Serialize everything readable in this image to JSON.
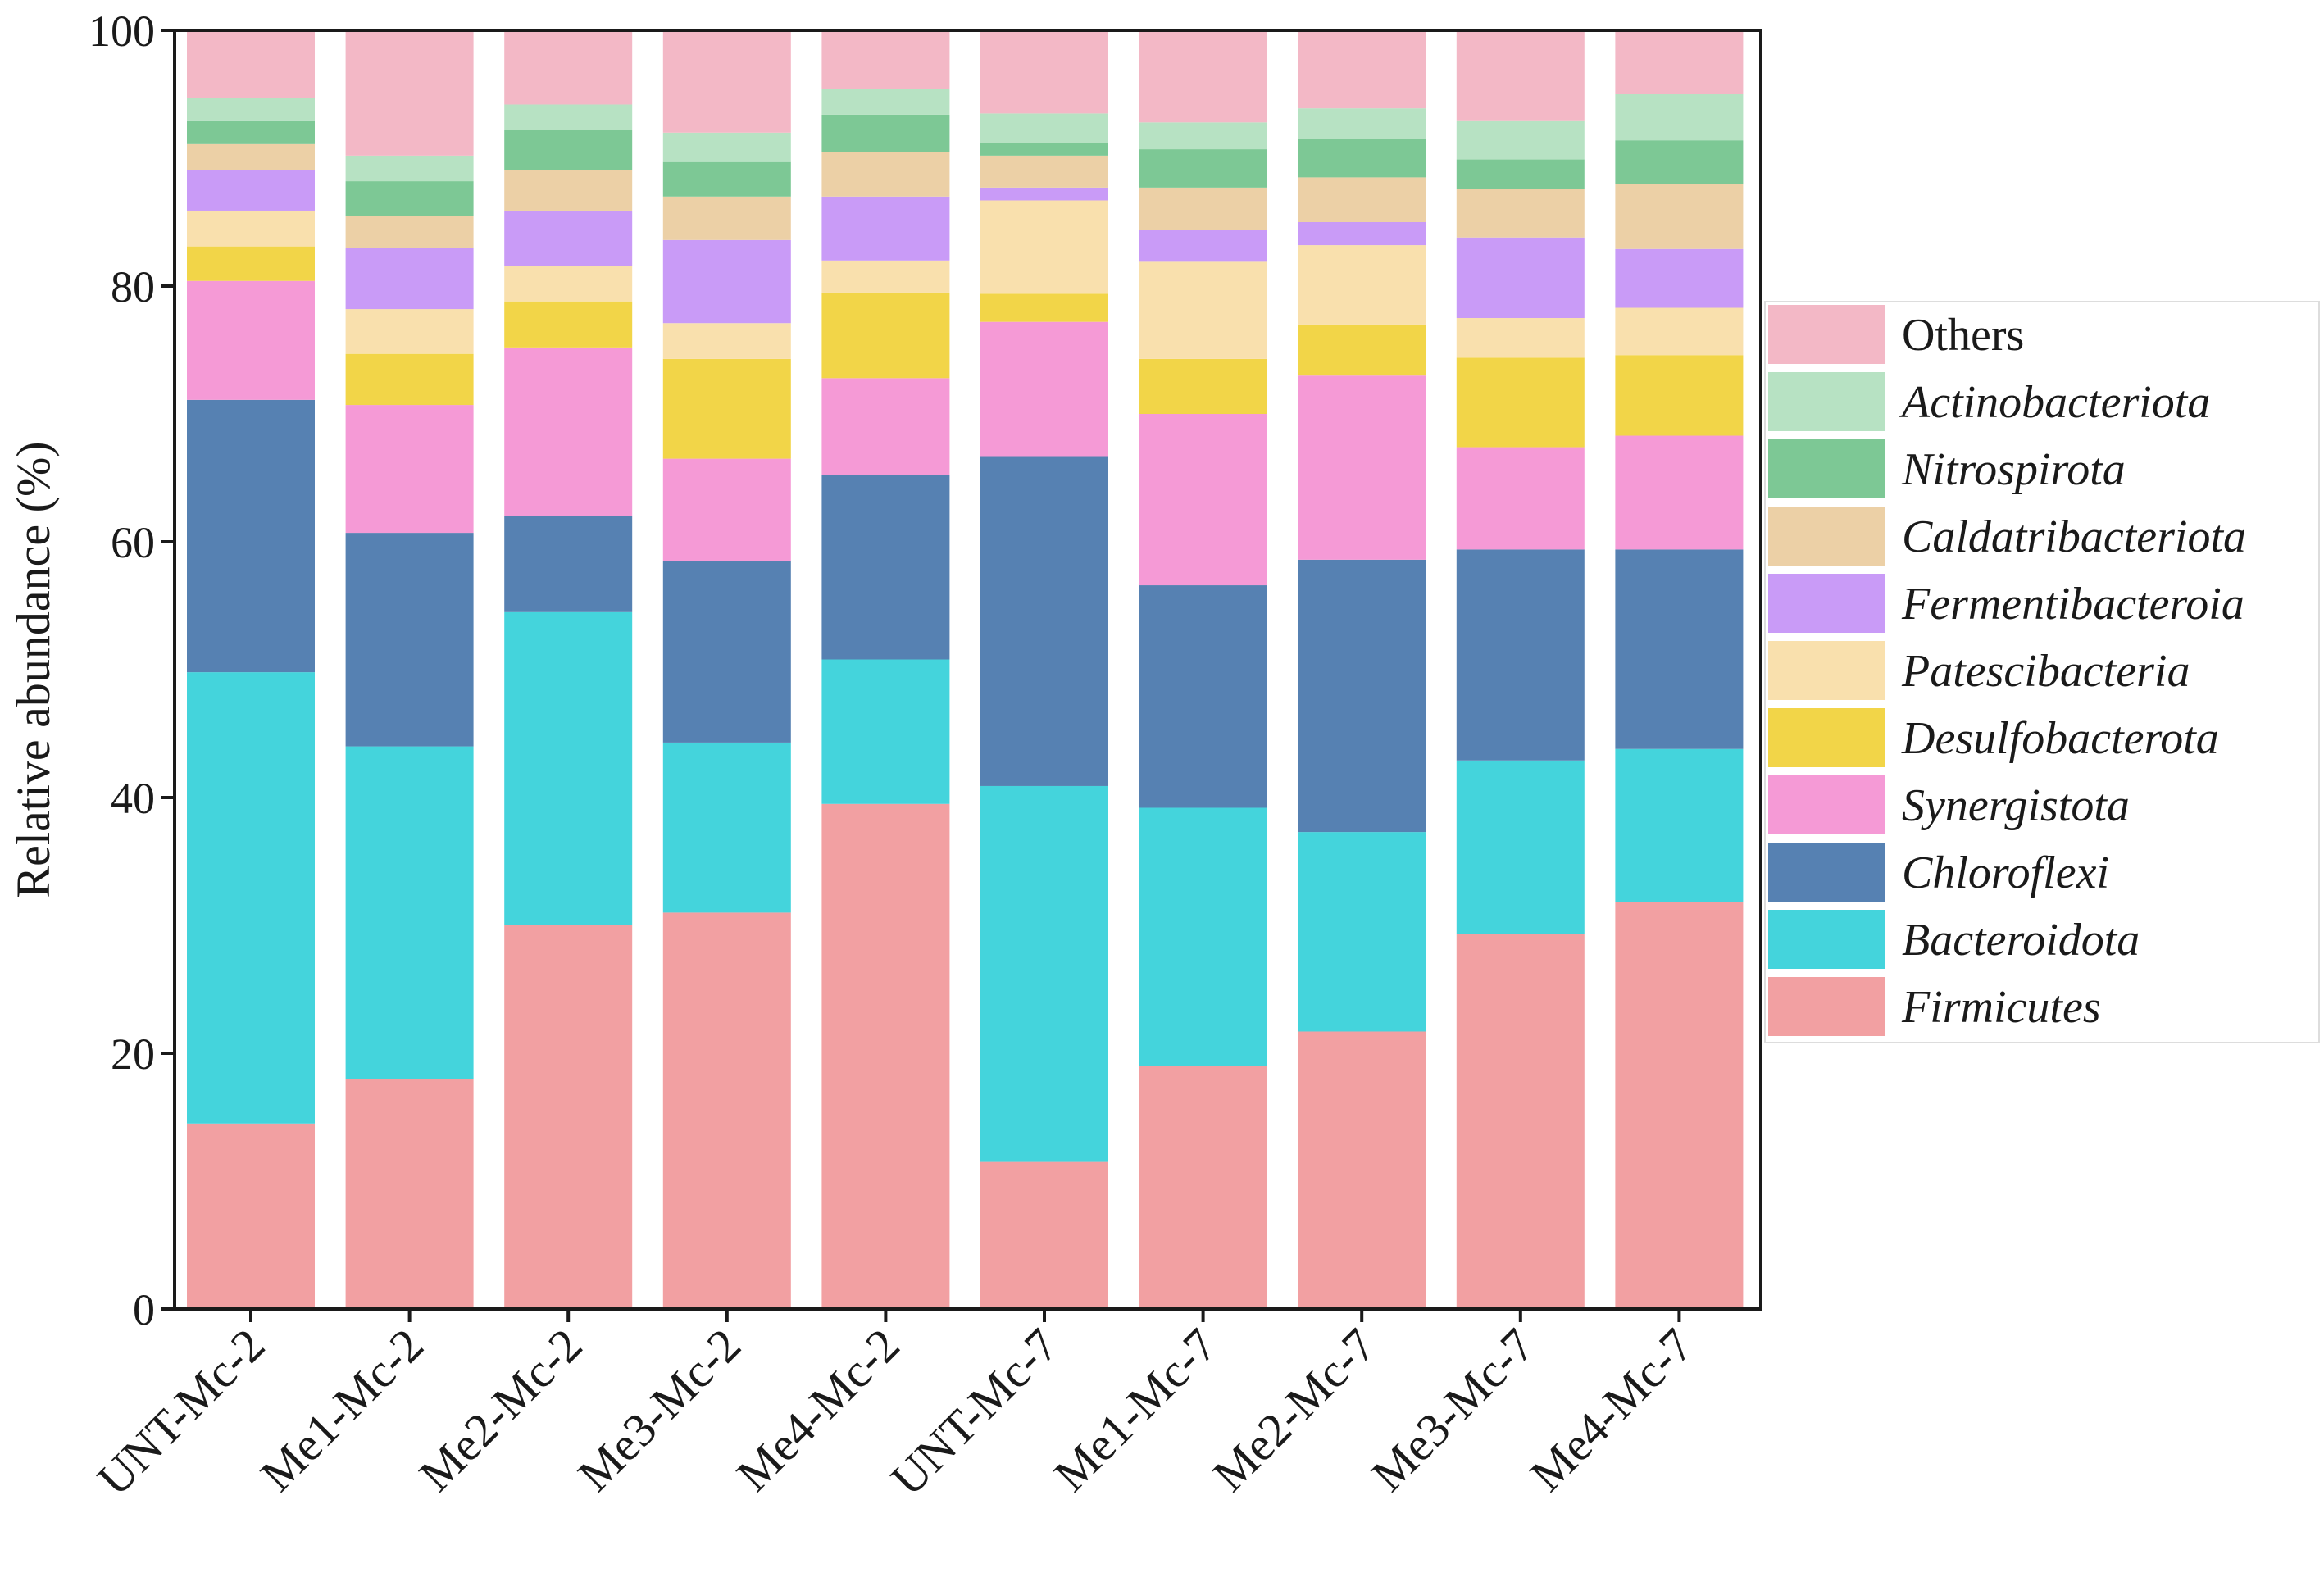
{
  "chart_data": {
    "type": "bar",
    "stacked": true,
    "title": "",
    "xlabel": "",
    "ylabel": "Relative abundance (%)",
    "ylim": [
      0,
      100
    ],
    "yticks": [
      "0",
      "20",
      "40",
      "60",
      "80",
      "100"
    ],
    "categories": [
      "UNT-Mc-2",
      "Me1-Mc-2",
      "Me2-Mc-2",
      "Me3-Mc-2",
      "Me4-Mc-2",
      "UNT-Mc-7",
      "Me1-Mc-7",
      "Me2-Mc-7",
      "Me3-Mc-7",
      "Me4-Mc-7"
    ],
    "legend_position": "right",
    "series": [
      {
        "name": "Firmicutes",
        "italic": true,
        "color": "#f2a0a2",
        "values": [
          14.5,
          18.0,
          30.0,
          31.0,
          39.5,
          11.5,
          19.0,
          21.7,
          29.3,
          31.8
        ]
      },
      {
        "name": "Bacteroidota",
        "italic": true,
        "color": "#44d4dc",
        "values": [
          35.3,
          26.0,
          24.5,
          13.3,
          11.3,
          29.4,
          20.2,
          15.6,
          13.6,
          12.0
        ]
      },
      {
        "name": "Chloroflexi",
        "italic": true,
        "color": "#5681b2",
        "values": [
          21.3,
          16.7,
          7.5,
          14.2,
          14.4,
          25.8,
          17.4,
          21.3,
          16.5,
          15.6
        ]
      },
      {
        "name": "Synergistota",
        "italic": true,
        "color": "#f59ad6",
        "values": [
          9.3,
          10.0,
          13.2,
          8.0,
          7.6,
          10.5,
          13.4,
          14.4,
          8.0,
          8.9
        ]
      },
      {
        "name": "Desulfobacterota",
        "italic": true,
        "color": "#f2d548",
        "values": [
          2.7,
          4.0,
          3.6,
          7.8,
          6.7,
          2.2,
          4.3,
          4.0,
          7.0,
          6.3
        ]
      },
      {
        "name": "Patescibacteria",
        "italic": true,
        "color": "#f9e0ad",
        "values": [
          2.8,
          3.5,
          2.8,
          2.8,
          2.5,
          7.3,
          7.6,
          6.2,
          3.1,
          3.7
        ]
      },
      {
        "name": "Fermentibacteroia",
        "italic": true,
        "color": "#c99bf7",
        "values": [
          3.2,
          4.8,
          4.3,
          6.5,
          5.0,
          1.0,
          2.5,
          1.8,
          6.3,
          4.6
        ]
      },
      {
        "name": "Caldatribacteriota",
        "italic": true,
        "color": "#ecd0a6",
        "values": [
          2.0,
          2.5,
          3.2,
          3.4,
          3.5,
          2.5,
          3.3,
          3.5,
          3.8,
          5.1
        ]
      },
      {
        "name": "Nitrospirota",
        "italic": true,
        "color": "#7dc895",
        "values": [
          1.8,
          2.7,
          3.1,
          2.7,
          2.9,
          1.0,
          3.0,
          3.0,
          2.3,
          3.4
        ]
      },
      {
        "name": "Actinobacteriota",
        "italic": true,
        "color": "#b7e2c3",
        "values": [
          1.8,
          2.0,
          2.0,
          2.3,
          2.0,
          2.3,
          2.1,
          2.4,
          3.0,
          3.6
        ]
      },
      {
        "name": "Others",
        "italic": false,
        "color": "#f3b8c6",
        "values": [
          5.3,
          9.8,
          5.8,
          8.0,
          4.6,
          6.5,
          7.2,
          6.1,
          7.1,
          5.0
        ]
      }
    ]
  }
}
